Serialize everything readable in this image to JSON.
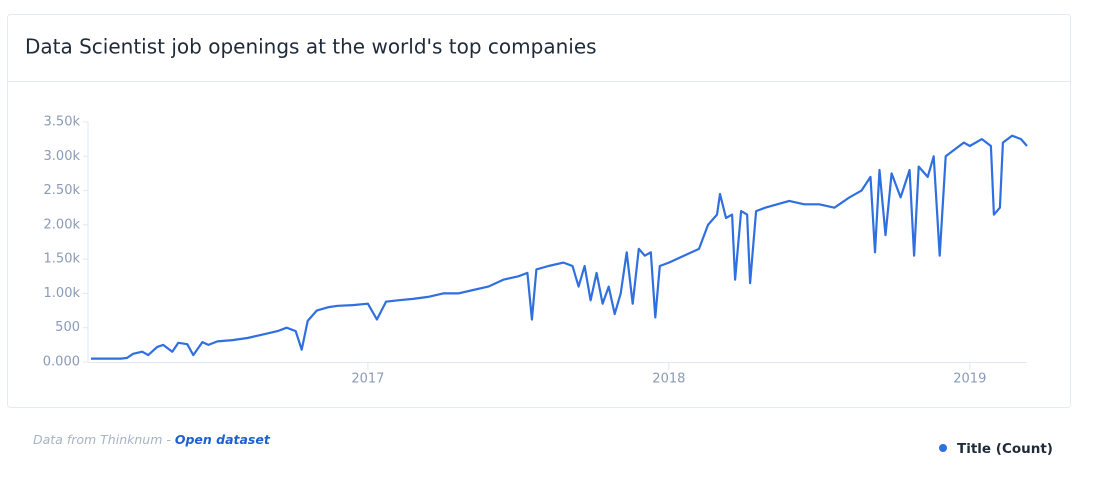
{
  "chart_data": {
    "type": "line",
    "title": "Data Scientist job openings at the world's top companies",
    "source_text": "Data from Thinknum - ",
    "source_link": "Open dataset",
    "x": [
      2016.08,
      2016.1,
      2016.13,
      2016.15,
      2016.18,
      2016.2,
      2016.22,
      2016.25,
      2016.27,
      2016.3,
      2016.32,
      2016.35,
      2016.37,
      2016.4,
      2016.42,
      2016.45,
      2016.47,
      2016.5,
      2016.55,
      2016.6,
      2016.65,
      2016.7,
      2016.73,
      2016.76,
      2016.78,
      2016.8,
      2016.83,
      2016.87,
      2016.9,
      2016.95,
      2017,
      2017.03,
      2017.06,
      2017.1,
      2017.15,
      2017.2,
      2017.25,
      2017.3,
      2017.35,
      2017.4,
      2017.45,
      2017.5,
      2017.53,
      2017.545,
      2017.56,
      2017.6,
      2017.65,
      2017.68,
      2017.7,
      2017.72,
      2017.74,
      2017.76,
      2017.78,
      2017.8,
      2017.82,
      2017.84,
      2017.86,
      2017.88,
      2017.9,
      2017.92,
      2017.94,
      2017.955,
      2017.97,
      2018,
      2018.05,
      2018.1,
      2018.13,
      2018.16,
      2018.17,
      2018.19,
      2018.21,
      2018.22,
      2018.24,
      2018.26,
      2018.27,
      2018.29,
      2018.32,
      2018.36,
      2018.4,
      2018.45,
      2018.5,
      2018.55,
      2018.6,
      2018.64,
      2018.67,
      2018.685,
      2018.7,
      2018.72,
      2018.74,
      2018.77,
      2018.8,
      2018.815,
      2018.83,
      2018.86,
      2018.88,
      2018.9,
      2018.92,
      2018.95,
      2018.98,
      2019,
      2019.04,
      2019.07,
      2019.08,
      2019.1,
      2019.11,
      2019.14,
      2019.17,
      2019.19
    ],
    "series": [
      {
        "name": "Title (Count)",
        "color": "#2f6fdf",
        "values": [
          50,
          50,
          50,
          50,
          50,
          60,
          120,
          150,
          100,
          220,
          250,
          150,
          280,
          260,
          100,
          290,
          250,
          300,
          320,
          350,
          400,
          450,
          500,
          450,
          180,
          600,
          750,
          800,
          820,
          830,
          850,
          620,
          880,
          900,
          920,
          950,
          1000,
          1000,
          1050,
          1100,
          1200,
          1250,
          1300,
          620,
          1350,
          1400,
          1450,
          1400,
          1100,
          1400,
          900,
          1300,
          850,
          1100,
          700,
          1000,
          1600,
          850,
          1650,
          1550,
          1600,
          650,
          1400,
          1450,
          1550,
          1650,
          2000,
          2150,
          2450,
          2100,
          2150,
          1200,
          2200,
          2150,
          1150,
          2200,
          2250,
          2300,
          2350,
          2300,
          2300,
          2250,
          2400,
          2500,
          2700,
          1600,
          2800,
          1850,
          2750,
          2400,
          2800,
          1550,
          2850,
          2700,
          3000,
          1550,
          3000,
          3100,
          3200,
          3150,
          3250,
          3150,
          2150,
          2250,
          3200,
          3300,
          3250,
          3150
        ]
      }
    ],
    "xlim": [
      2016.07,
      2019.19
    ],
    "xticks": [
      2017,
      2018,
      2019
    ],
    "ylim": [
      0,
      3500
    ],
    "yticks": [
      {
        "value": 0,
        "label": "0.000"
      },
      500,
      {
        "value": 1000,
        "label": "1.00k"
      },
      {
        "value": 1500,
        "label": "1.50k"
      },
      {
        "value": 2000,
        "label": "2.00k"
      },
      {
        "value": 2500,
        "label": "2.50k"
      },
      {
        "value": 3000,
        "label": "3.00k"
      },
      {
        "value": 3500,
        "label": "3.50k"
      }
    ]
  }
}
